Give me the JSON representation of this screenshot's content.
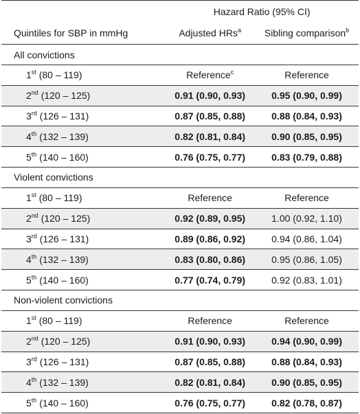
{
  "header": {
    "group_label": "Hazard Ratio (95% CI)",
    "quintile_label": "Quintiles for SBP in mmHg",
    "adjusted_label": "Adjusted HRs",
    "adjusted_sup": "a",
    "sibling_label": "Sibling comparison",
    "sibling_sup": "b"
  },
  "sections": [
    {
      "title": "All convictions",
      "rows": [
        {
          "ord": "1",
          "sup": "st",
          "range": " (80 – 119)",
          "adj": "Reference",
          "adj_sup": "c",
          "adj_bold": false,
          "sib": "Reference",
          "sib_bold": false
        },
        {
          "ord": "2",
          "sup": "nd",
          "range": " (120 – 125)",
          "adj": "0.91 (0.90, 0.93)",
          "adj_sup": "",
          "adj_bold": true,
          "sib": "0.95 (0.90, 0.99)",
          "sib_bold": true
        },
        {
          "ord": "3",
          "sup": "rd",
          "range": " (126 – 131)",
          "adj": "0.87 (0.85, 0.88)",
          "adj_sup": "",
          "adj_bold": true,
          "sib": "0.88 (0.84, 0.93)",
          "sib_bold": true
        },
        {
          "ord": "4",
          "sup": "th",
          "range": " (132 – 139)",
          "adj": "0.82 (0.81, 0.84)",
          "adj_sup": "",
          "adj_bold": true,
          "sib": "0.90 (0.85, 0.95)",
          "sib_bold": true
        },
        {
          "ord": "5",
          "sup": "th",
          "range": " (140 – 160)",
          "adj": "0.76 (0.75, 0.77)",
          "adj_sup": "",
          "adj_bold": true,
          "sib": "0.83 (0.79, 0.88)",
          "sib_bold": true
        }
      ]
    },
    {
      "title": "Violent convictions",
      "rows": [
        {
          "ord": "1",
          "sup": "st",
          "range": " (80 – 119)",
          "adj": "Reference",
          "adj_sup": "",
          "adj_bold": false,
          "sib": "Reference",
          "sib_bold": false
        },
        {
          "ord": "2",
          "sup": "nd",
          "range": " (120 – 125)",
          "adj": "0.92 (0.89, 0.95)",
          "adj_sup": "",
          "adj_bold": true,
          "sib": "1.00 (0.92, 1.10)",
          "sib_bold": false
        },
        {
          "ord": "3",
          "sup": "rd",
          "range": " (126 – 131)",
          "adj": "0.89 (0.86, 0.92)",
          "adj_sup": "",
          "adj_bold": true,
          "sib": "0.94 (0.86, 1.04)",
          "sib_bold": false
        },
        {
          "ord": "4",
          "sup": "th",
          "range": " (132 – 139)",
          "adj": "0.83 (0.80, 0.86)",
          "adj_sup": "",
          "adj_bold": true,
          "sib": "0.95 (0.86, 1.05)",
          "sib_bold": false
        },
        {
          "ord": "5",
          "sup": "th",
          "range": " (140 – 160)",
          "adj": "0.77 (0.74, 0.79)",
          "adj_sup": "",
          "adj_bold": true,
          "sib": "0.92 (0.83, 1.01)",
          "sib_bold": false
        }
      ]
    },
    {
      "title": "Non-violent convictions",
      "rows": [
        {
          "ord": "1",
          "sup": "st",
          "range": " (80 – 119)",
          "adj": "Reference",
          "adj_sup": "",
          "adj_bold": false,
          "sib": "Reference",
          "sib_bold": false
        },
        {
          "ord": "2",
          "sup": "nd",
          "range": " (120 – 125)",
          "adj": "0.91 (0.90, 0.93)",
          "adj_sup": "",
          "adj_bold": true,
          "sib": "0.94 (0.90, 0.99)",
          "sib_bold": true
        },
        {
          "ord": "3",
          "sup": "rd",
          "range": " (126 – 131)",
          "adj": "0.87 (0.85, 0.88)",
          "adj_sup": "",
          "adj_bold": true,
          "sib": "0.88 (0.84, 0.93)",
          "sib_bold": true
        },
        {
          "ord": "4",
          "sup": "th",
          "range": " (132 – 139)",
          "adj": "0.82 (0.81, 0.84)",
          "adj_sup": "",
          "adj_bold": true,
          "sib": "0.90 (0.85, 0.95)",
          "sib_bold": true
        },
        {
          "ord": "5",
          "sup": "th",
          "range": " (140 – 160)",
          "adj": "0.76 (0.75, 0.77)",
          "adj_sup": "",
          "adj_bold": true,
          "sib": "0.82 (0.78, 0.87)",
          "sib_bold": true
        }
      ]
    }
  ]
}
